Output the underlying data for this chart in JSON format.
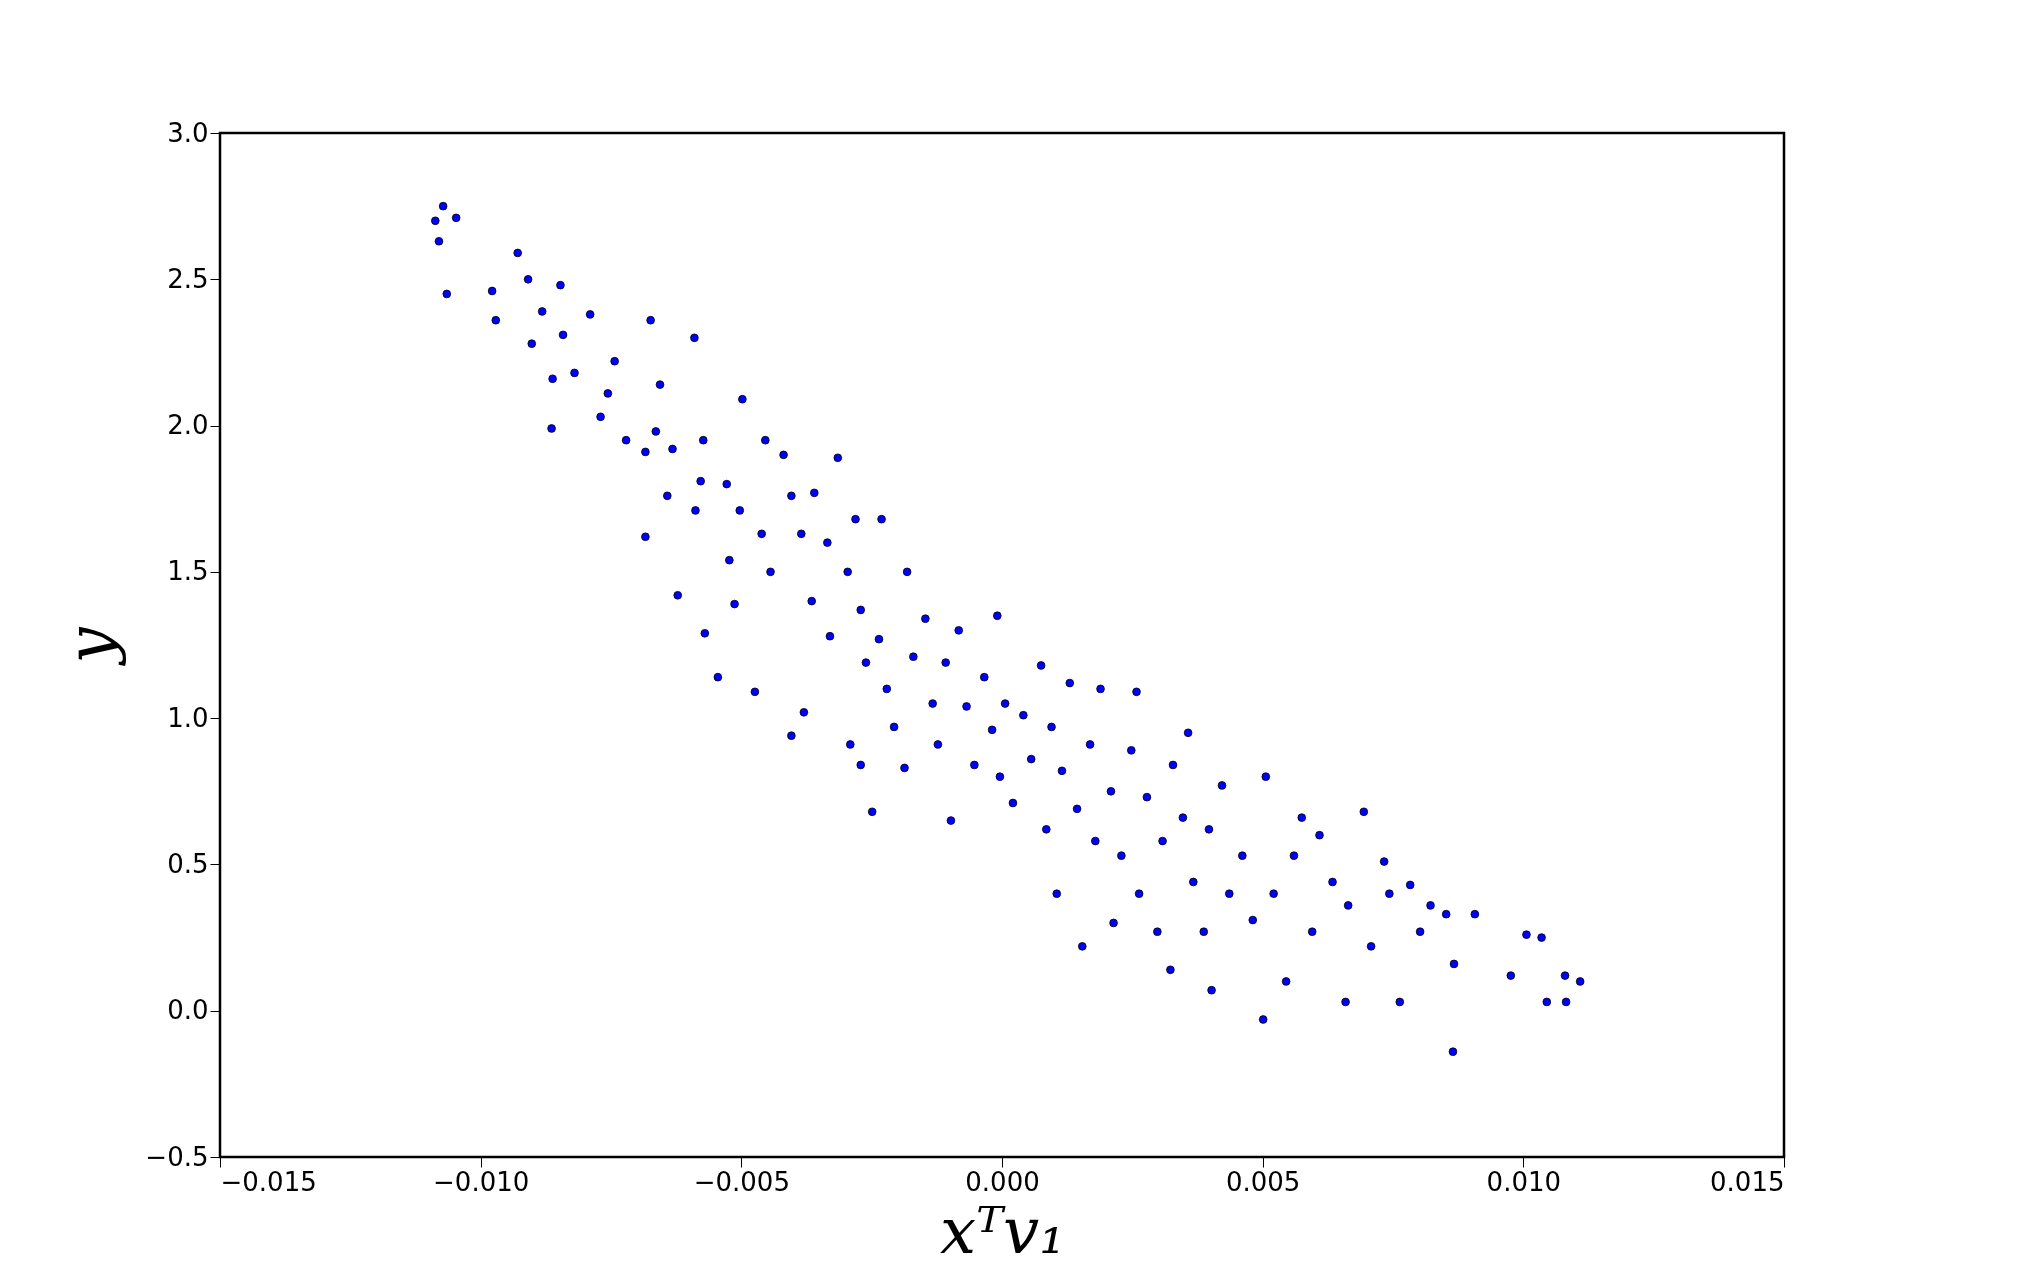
{
  "chart_data": {
    "type": "scatter",
    "xlabel": "xᵀv₁",
    "ylabel": "y",
    "marker": "circle",
    "grid": false,
    "xlim": [
      -0.015,
      0.015
    ],
    "ylim": [
      -0.5,
      3.0
    ],
    "xticks": [
      {
        "value": -0.015,
        "label": "−0.015"
      },
      {
        "value": -0.01,
        "label": "−0.010"
      },
      {
        "value": -0.005,
        "label": "−0.005"
      },
      {
        "value": 0,
        "label": "0.000"
      },
      {
        "value": 0.005,
        "label": "0.005"
      },
      {
        "value": 0.01,
        "label": "0.010"
      },
      {
        "value": 0.015,
        "label": "0.015"
      }
    ],
    "yticks": [
      {
        "value": -0.5,
        "label": "−0.5"
      },
      {
        "value": 0,
        "label": "0.0"
      },
      {
        "value": 0.5,
        "label": "0.5"
      },
      {
        "value": 1,
        "label": "1.0"
      },
      {
        "value": 1.5,
        "label": "1.5"
      },
      {
        "value": 2,
        "label": "2.0"
      },
      {
        "value": 2.5,
        "label": "2.5"
      },
      {
        "value": 3,
        "label": "3.0"
      }
    ],
    "series": [
      {
        "color": "#0000ff",
        "x": [
          -0.01087,
          -0.01072,
          -0.01047,
          -0.0108,
          -0.01065,
          -0.00978,
          -0.00971,
          -0.00929,
          -0.00909,
          -0.00902,
          -0.00882,
          -0.00847,
          -0.00842,
          -0.00862,
          -0.00864,
          -0.0079,
          -0.0082,
          -0.00743,
          -0.00674,
          -0.0059,
          -0.00756,
          -0.0077,
          -0.00721,
          -0.00684,
          -0.00664,
          -0.00656,
          -0.00684,
          -0.00642,
          -0.00632,
          -0.00622,
          -0.00573,
          -0.00578,
          -0.00588,
          -0.0057,
          -0.00545,
          -0.00498,
          -0.00528,
          -0.00503,
          -0.00523,
          -0.00513,
          -0.00474,
          -0.00454,
          -0.00461,
          -0.00444,
          -0.00419,
          -0.00404,
          -0.00385,
          -0.00404,
          -0.0038,
          -0.00365,
          -0.0036,
          -0.00335,
          -0.00315,
          -0.0033,
          -0.00296,
          -0.00281,
          -0.00291,
          -0.00271,
          -0.00261,
          -0.00271,
          -0.00249,
          -0.00231,
          -0.00236,
          -0.00221,
          -0.00207,
          -0.00187,
          -0.00182,
          -0.0017,
          -0.00147,
          -0.00133,
          -0.00123,
          -0.00098,
          -0.00108,
          -0.00083,
          -0.00068,
          -0.00053,
          -0.00034,
          -0.00019,
          -9e-05,
          -4e-05,
          6e-05,
          0.00021,
          0.00041,
          0.00056,
          0.00075,
          0.00085,
          0.00095,
          0.00105,
          0.00115,
          0.0013,
          0.00144,
          0.00154,
          0.00169,
          0.00179,
          0.00189,
          0.00209,
          0.00214,
          0.00229,
          0.00248,
          0.00258,
          0.00263,
          0.00278,
          0.00298,
          0.00308,
          0.00323,
          0.00328,
          0.00347,
          0.00357,
          0.00367,
          0.00387,
          0.00397,
          0.00402,
          0.00422,
          0.00436,
          0.00461,
          0.00481,
          0.00501,
          0.00506,
          0.00521,
          0.00545,
          0.0056,
          0.00575,
          0.00595,
          0.00609,
          0.00634,
          0.00659,
          0.00664,
          0.00694,
          0.00708,
          0.00733,
          0.00743,
          0.00763,
          0.00783,
          0.00802,
          0.00822,
          0.00852,
          0.00867,
          0.00865,
          0.00907,
          0.00976,
          0.01006,
          0.01035,
          0.01045,
          0.0108,
          0.01109,
          0.01082
        ],
        "values": [
          2.7,
          2.75,
          2.71,
          2.63,
          2.45,
          2.46,
          2.36,
          2.59,
          2.5,
          2.28,
          2.39,
          2.48,
          2.31,
          2.16,
          1.99,
          2.38,
          2.18,
          2.22,
          2.36,
          2.3,
          2.11,
          2.03,
          1.95,
          1.91,
          1.98,
          2.14,
          1.62,
          1.76,
          1.92,
          1.42,
          1.95,
          1.81,
          1.71,
          1.29,
          1.14,
          2.09,
          1.8,
          1.71,
          1.54,
          1.39,
          1.09,
          1.95,
          1.63,
          1.5,
          1.9,
          1.76,
          1.63,
          0.94,
          1.02,
          1.4,
          1.77,
          1.6,
          1.89,
          1.28,
          1.5,
          1.68,
          0.91,
          1.37,
          1.19,
          0.84,
          0.68,
          1.68,
          1.27,
          1.1,
          0.97,
          0.83,
          1.5,
          1.21,
          1.34,
          1.05,
          0.91,
          0.65,
          1.19,
          1.3,
          1.04,
          0.84,
          1.14,
          0.96,
          1.35,
          0.8,
          1.05,
          0.71,
          1.01,
          0.86,
          1.18,
          0.62,
          0.97,
          0.4,
          0.82,
          1.12,
          0.69,
          0.22,
          0.91,
          0.58,
          1.1,
          0.75,
          0.3,
          0.53,
          0.89,
          1.09,
          0.4,
          0.73,
          0.27,
          0.58,
          0.14,
          0.84,
          0.66,
          0.95,
          0.44,
          0.27,
          0.62,
          0.07,
          0.77,
          0.4,
          0.53,
          0.31,
          -0.03,
          0.8,
          0.4,
          0.1,
          0.53,
          0.66,
          0.27,
          0.6,
          0.44,
          0.03,
          0.36,
          0.68,
          0.22,
          0.51,
          0.4,
          0.03,
          0.43,
          0.27,
          0.36,
          0.33,
          0.16,
          -0.14,
          0.33,
          0.12,
          0.26,
          0.25,
          0.03,
          0.12,
          0.1,
          0.03
        ]
      }
    ]
  }
}
